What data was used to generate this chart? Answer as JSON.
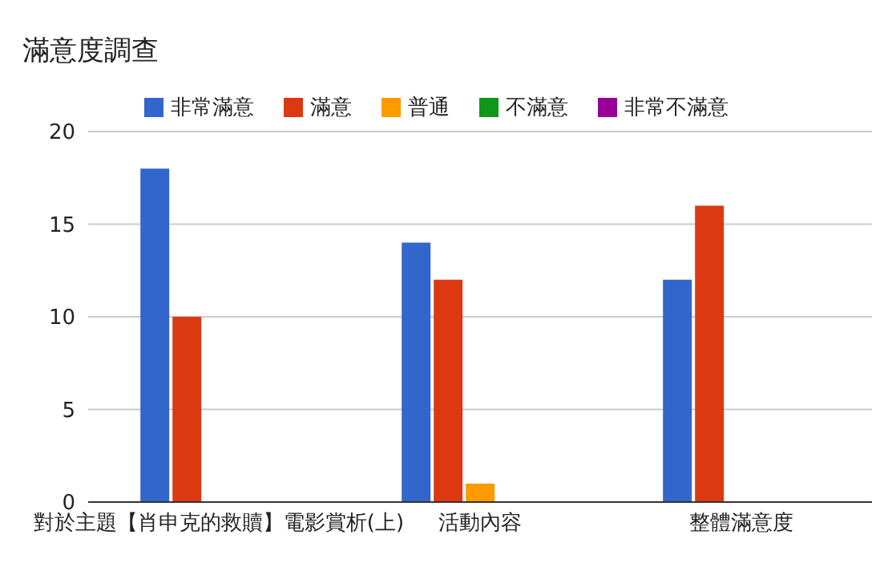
{
  "chart_data": {
    "type": "bar",
    "title": "滿意度調查",
    "categories": [
      "對於主題【肖申克的救贖】電影賞析(上)",
      "活動內容",
      "整體滿意度"
    ],
    "series": [
      {
        "name": "非常滿意",
        "color": "#3366cc",
        "values": [
          18,
          14,
          12
        ]
      },
      {
        "name": "滿意",
        "color": "#dc3912",
        "values": [
          10,
          12,
          16
        ]
      },
      {
        "name": "普通",
        "color": "#ff9900",
        "values": [
          0,
          1,
          0
        ]
      },
      {
        "name": "不滿意",
        "color": "#109618",
        "values": [
          0,
          0,
          0
        ]
      },
      {
        "name": "非常不滿意",
        "color": "#990099",
        "values": [
          0,
          0,
          0
        ]
      }
    ],
    "ylim": [
      0,
      20
    ],
    "yticks": [
      0,
      5,
      10,
      15,
      20
    ],
    "grid": "y",
    "legend": "top"
  }
}
